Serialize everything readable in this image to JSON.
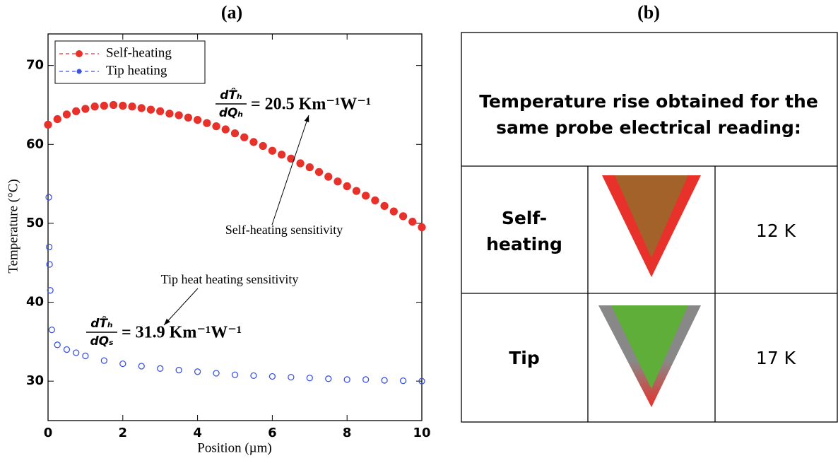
{
  "panel_labels": [
    "(a)",
    "(b)"
  ],
  "chart_data": {
    "type": "scatter",
    "xlabel": "Position (µm)",
    "ylabel": "Temperature (°C)",
    "xlim": [
      0,
      10
    ],
    "ylim": [
      25,
      74
    ],
    "xticks": [
      0,
      2,
      4,
      6,
      8,
      10
    ],
    "yticks": [
      30,
      40,
      50,
      60,
      70
    ],
    "legend": "upper left",
    "series": [
      {
        "name": "Self-heating",
        "color": "#e8312a",
        "x": [
          0,
          0.25,
          0.5,
          0.75,
          1,
          1.25,
          1.5,
          1.75,
          2,
          2.25,
          2.5,
          2.75,
          3,
          3.25,
          3.5,
          3.75,
          4,
          4.25,
          4.5,
          4.75,
          5,
          5.25,
          5.5,
          5.75,
          6,
          6.25,
          6.5,
          6.75,
          7,
          7.25,
          7.5,
          7.75,
          8,
          8.25,
          8.5,
          8.75,
          9,
          9.25,
          9.5,
          9.75,
          10
        ],
        "values": [
          62.5,
          63.2,
          63.8,
          64.2,
          64.5,
          64.8,
          64.9,
          65.0,
          64.9,
          64.8,
          64.6,
          64.4,
          64.2,
          63.9,
          63.7,
          63.4,
          63.1,
          62.7,
          62.3,
          61.9,
          61.4,
          60.9,
          60.3,
          59.8,
          59.2,
          58.7,
          58.2,
          57.6,
          57.1,
          56.5,
          55.9,
          55.3,
          54.7,
          54.1,
          53.5,
          52.9,
          52.2,
          51.5,
          50.9,
          50.2,
          49.5
        ]
      },
      {
        "name": "Tip heating",
        "color": "#3a55e6",
        "x": [
          0.02,
          0.03,
          0.04,
          0.06,
          0.1,
          0.25,
          0.5,
          0.75,
          1,
          1.5,
          2,
          2.5,
          3,
          3.5,
          4,
          4.5,
          5,
          5.5,
          6,
          6.5,
          7,
          7.5,
          8,
          8.5,
          9,
          9.5,
          10
        ],
        "values": [
          53.3,
          47.0,
          44.8,
          41.5,
          36.5,
          34.6,
          34.0,
          33.6,
          33.2,
          32.6,
          32.2,
          31.9,
          31.6,
          31.4,
          31.2,
          31.0,
          30.8,
          30.7,
          30.6,
          30.5,
          30.4,
          30.3,
          30.2,
          30.2,
          30.1,
          30.05,
          30.0
        ]
      }
    ],
    "annotations": [
      {
        "fraction_top": "dT̂ₕ",
        "fraction_bottom": "dQₕ",
        "text": "= 20.5 Km⁻¹W⁻¹",
        "caption": "Self-heating sensitivity"
      },
      {
        "fraction_top": "dT̂ₕ",
        "fraction_bottom": "dQₛ",
        "text": "= 31.9 Km⁻¹W⁻¹",
        "caption": "Tip heat heating sensitivity"
      }
    ]
  },
  "table": {
    "header_lines": [
      "Temperature rise obtained for the",
      "same probe electrical reading:"
    ],
    "rows": [
      {
        "label_lines": [
          "Self-",
          "heating"
        ],
        "value": "12 K"
      },
      {
        "label_lines": [
          "Tip"
        ],
        "value": "17 K"
      }
    ]
  }
}
